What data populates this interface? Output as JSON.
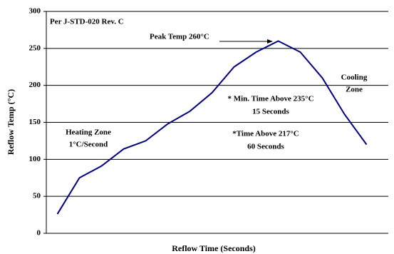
{
  "chart_data": {
    "type": "line",
    "categories": [
      null,
      null,
      null,
      null,
      null,
      null,
      null,
      null,
      null,
      null,
      null,
      null,
      null,
      null,
      null
    ],
    "series": [
      {
        "name": null,
        "color": "#000080",
        "values": [
          26,
          75,
          91,
          114,
          125,
          148,
          165,
          190,
          225,
          245,
          260,
          245,
          210,
          161,
          120
        ]
      }
    ],
    "ylim": [
      0,
      300
    ],
    "yticks": [
      0,
      50,
      100,
      150,
      200,
      250,
      300
    ],
    "grid": true,
    "xlabel": "Reflow Time (Seconds)",
    "ylabel": "Reflow Temp (°C)",
    "annotations": [
      "Per J-STD-020 Rev. C",
      "Peak Temp 260°C",
      "Heating Zone",
      "1°C/Second",
      "Cooling",
      "Zone",
      "* Min. Time Above 235°C",
      "15 Seconds",
      "*Time Above 217°C",
      "60 Seconds"
    ]
  }
}
